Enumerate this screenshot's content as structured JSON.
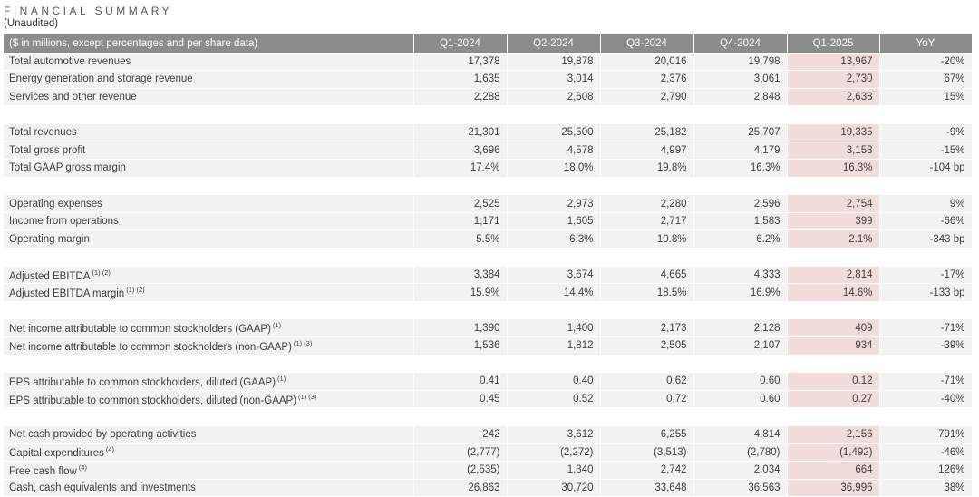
{
  "title": "FINANCIAL SUMMARY",
  "subtitle": "(Unaudited)",
  "table": {
    "header": {
      "label": "($ in millions, except percentages and per share data)",
      "columns": [
        "Q1-2024",
        "Q2-2024",
        "Q3-2024",
        "Q4-2024",
        "Q1-2025",
        "YoY"
      ]
    },
    "highlight_column": "Q1-2025",
    "highlight_column_index": 4,
    "colors": {
      "header_bg": "#8c8c8c",
      "header_text": "#ffffff",
      "row_bg": "#f2f2f2",
      "highlight_bg": "#f2dcdb",
      "text": "#3f3f3f"
    },
    "rows": [
      {
        "label": "Total automotive revenues",
        "sup": "",
        "values": [
          "17,378",
          "19,878",
          "20,016",
          "19,798",
          "13,967",
          "-20%"
        ]
      },
      {
        "label": "Energy generation and storage revenue",
        "sup": "",
        "values": [
          "1,635",
          "3,014",
          "2,376",
          "3,061",
          "2,730",
          "67%"
        ]
      },
      {
        "label": "Services and other revenue",
        "sup": "",
        "values": [
          "2,288",
          "2,608",
          "2,790",
          "2,848",
          "2,638",
          "15%"
        ]
      },
      {
        "spacer": true
      },
      {
        "label": "Total revenues",
        "sup": "",
        "values": [
          "21,301",
          "25,500",
          "25,182",
          "25,707",
          "19,335",
          "-9%"
        ]
      },
      {
        "label": "Total gross profit",
        "sup": "",
        "values": [
          "3,696",
          "4,578",
          "4,997",
          "4,179",
          "3,153",
          "-15%"
        ]
      },
      {
        "label": "Total GAAP gross margin",
        "sup": "",
        "values": [
          "17.4%",
          "18.0%",
          "19.8%",
          "16.3%",
          "16.3%",
          "-104 bp"
        ]
      },
      {
        "spacer": true
      },
      {
        "label": "Operating expenses",
        "sup": "",
        "values": [
          "2,525",
          "2,973",
          "2,280",
          "2,596",
          "2,754",
          "9%"
        ]
      },
      {
        "label": "Income from operations",
        "sup": "",
        "values": [
          "1,171",
          "1,605",
          "2,717",
          "1,583",
          "399",
          "-66%"
        ]
      },
      {
        "label": "Operating margin",
        "sup": "",
        "values": [
          "5.5%",
          "6.3%",
          "10.8%",
          "6.2%",
          "2.1%",
          "-343 bp"
        ]
      },
      {
        "spacer": true
      },
      {
        "label": "Adjusted EBITDA",
        "sup": "(1) (2)",
        "values": [
          "3,384",
          "3,674",
          "4,665",
          "4,333",
          "2,814",
          "-17%"
        ]
      },
      {
        "label": "Adjusted EBITDA margin",
        "sup": "(1) (2)",
        "values": [
          "15.9%",
          "14.4%",
          "18.5%",
          "16.9%",
          "14.6%",
          "-133 bp"
        ]
      },
      {
        "spacer": true
      },
      {
        "label": "Net income attributable to common stockholders (GAAP)",
        "sup": "(1)",
        "values": [
          "1,390",
          "1,400",
          "2,173",
          "2,128",
          "409",
          "-71%"
        ]
      },
      {
        "label": "Net income attributable to common stockholders (non-GAAP)",
        "sup": "(1) (3)",
        "values": [
          "1,536",
          "1,812",
          "2,505",
          "2,107",
          "934",
          "-39%"
        ]
      },
      {
        "spacer": true
      },
      {
        "label": "EPS attributable to common stockholders, diluted (GAAP)",
        "sup": "(1)",
        "values": [
          "0.41",
          "0.40",
          "0.62",
          "0.60",
          "0.12",
          "-71%"
        ]
      },
      {
        "label": "EPS attributable to common stockholders, diluted (non-GAAP)",
        "sup": "(1) (3)",
        "values": [
          "0.45",
          "0.52",
          "0.72",
          "0.60",
          "0.27",
          "-40%"
        ]
      },
      {
        "spacer": true
      },
      {
        "label": "Net cash provided by operating activities",
        "sup": "",
        "values": [
          "242",
          "3,612",
          "6,255",
          "4,814",
          "2,156",
          "791%"
        ]
      },
      {
        "label": "Capital expenditures",
        "sup": "(4)",
        "values": [
          "(2,777)",
          "(2,272)",
          "(3,513)",
          "(2,780)",
          "(1,492)",
          "-46%"
        ]
      },
      {
        "label": "Free cash flow",
        "sup": "(4)",
        "values": [
          "(2,535)",
          "1,340",
          "2,742",
          "2,034",
          "664",
          "126%"
        ]
      },
      {
        "label": "Cash, cash equivalents and investments",
        "sup": "",
        "values": [
          "26,863",
          "30,720",
          "33,648",
          "36,563",
          "36,996",
          "38%"
        ]
      }
    ]
  }
}
